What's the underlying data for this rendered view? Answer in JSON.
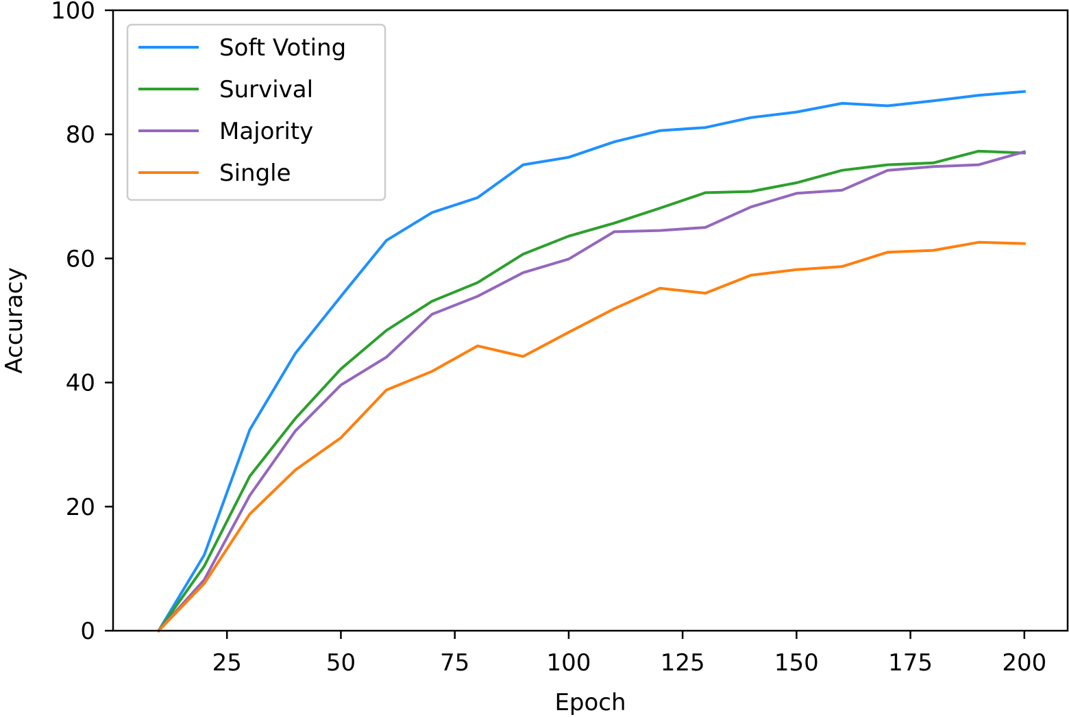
{
  "chart_data": {
    "type": "line",
    "title": "",
    "xlabel": "Epoch",
    "ylabel": "Accuracy",
    "xlim": [
      0,
      209.5
    ],
    "ylim": [
      0,
      100
    ],
    "x_ticks": [
      "25",
      "50",
      "75",
      "100",
      "125",
      "150",
      "175",
      "200"
    ],
    "y_ticks": [
      "0",
      "20",
      "40",
      "60",
      "80",
      "100"
    ],
    "grid": false,
    "legend_position": "top-left",
    "x": [
      10,
      20,
      30,
      40,
      50,
      60,
      70,
      80,
      90,
      100,
      110,
      120,
      130,
      140,
      150,
      160,
      170,
      180,
      190,
      200
    ],
    "series": [
      {
        "name": "Soft Voting",
        "color": "#1e90ff",
        "values": [
          0,
          12.2,
          32.4,
          44.7,
          53.9,
          62.9,
          67.4,
          69.8,
          75.1,
          76.3,
          78.8,
          80.6,
          81.1,
          82.7,
          83.6,
          85.0,
          84.6,
          85.4,
          86.3,
          86.9
        ]
      },
      {
        "name": "Survival",
        "color": "#2ca02c",
        "values": [
          0,
          10.4,
          24.9,
          34.2,
          42.2,
          48.4,
          53.1,
          56.1,
          60.7,
          63.6,
          65.7,
          68.1,
          70.6,
          70.8,
          72.2,
          74.2,
          75.1,
          75.4,
          77.3,
          77.0
        ]
      },
      {
        "name": "Majority",
        "color": "#9467bd",
        "values": [
          0,
          8.2,
          21.8,
          32.2,
          39.6,
          44.1,
          51.0,
          53.9,
          57.7,
          59.9,
          64.3,
          64.5,
          65.0,
          68.3,
          70.5,
          71.0,
          74.2,
          74.8,
          75.1,
          77.2
        ]
      },
      {
        "name": "Single",
        "color": "#ff7f0e",
        "values": [
          0,
          7.6,
          18.8,
          25.9,
          31.1,
          38.8,
          41.8,
          45.9,
          44.2,
          48.1,
          51.9,
          55.2,
          54.4,
          57.3,
          58.2,
          58.7,
          61.0,
          61.3,
          62.6,
          62.4
        ]
      }
    ]
  }
}
